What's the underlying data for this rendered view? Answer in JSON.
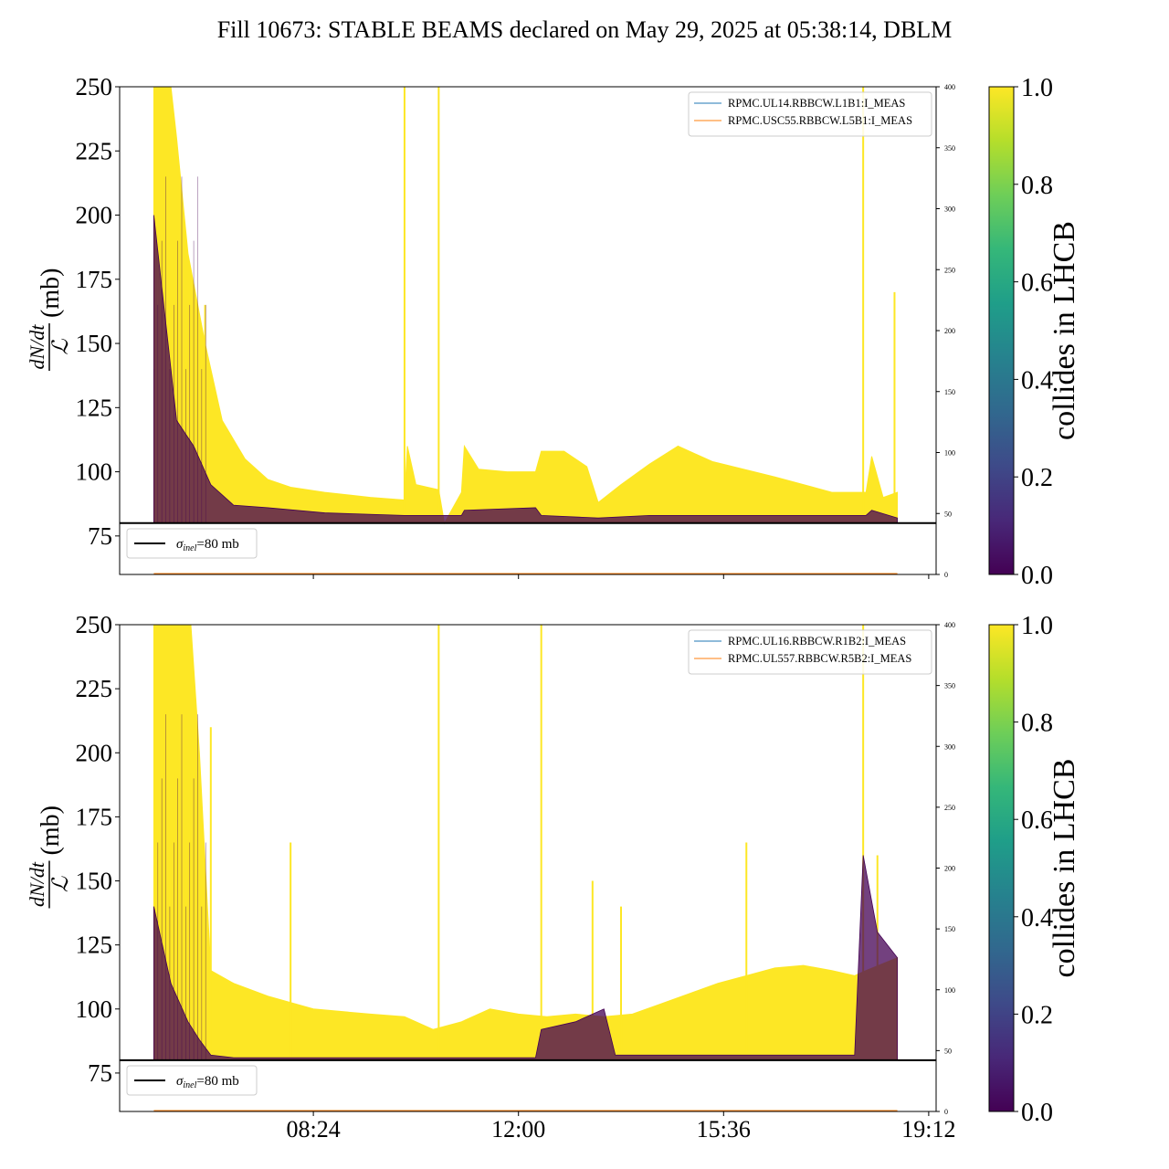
{
  "title": "Fill 10673: STABLE BEAMS declared on May 29, 2025 at 05:38:14, DBLM",
  "colors": {
    "low": "#440154",
    "high": "#fde725",
    "series_blue": "#1f77b4",
    "series_orange": "#ff7f0e"
  },
  "chart_data": [
    {
      "type": "area",
      "ylabel_num": "dN/dt",
      "ylabel_den": "ℒ",
      "ylabel_unit": "(mb)",
      "ylim": [
        60,
        250
      ],
      "yticks": [
        "75",
        "100",
        "125",
        "150",
        "175",
        "200",
        "225",
        "250"
      ],
      "y2lim": [
        0,
        400
      ],
      "y2ticks": [
        "0",
        "50",
        "100",
        "150",
        "200",
        "250",
        "300",
        "350",
        "400"
      ],
      "xticks": [
        "08:24",
        "12:00",
        "15:36",
        "19:12"
      ],
      "xticks_shown": false,
      "hline": {
        "value": 80,
        "label_sym": "σ",
        "label_sub": "inel",
        "label_rest": "=80 mb"
      },
      "legend": [
        "RPMC.UL14.RBBCW.L1B1:I_MEAS",
        "RPMC.USC55.RBBCW.L5B1:I_MEAS"
      ],
      "colorbar": {
        "label": "collides in LHCB",
        "ticks": [
          "0.0",
          "0.2",
          "0.4",
          "0.6",
          "0.8",
          "1.0"
        ]
      },
      "x_hours_range": [
        5.0,
        19.33
      ],
      "yellow_envelope": [
        [
          5.6,
          250
        ],
        [
          5.9,
          250
        ],
        [
          6.0,
          230
        ],
        [
          6.2,
          185
        ],
        [
          6.5,
          150
        ],
        [
          6.8,
          120
        ],
        [
          7.2,
          105
        ],
        [
          7.6,
          97
        ],
        [
          8.0,
          94
        ],
        [
          8.6,
          92
        ],
        [
          9.4,
          90
        ],
        [
          10.0,
          89
        ],
        [
          10.05,
          110
        ],
        [
          10.2,
          95
        ],
        [
          10.6,
          93
        ],
        [
          10.7,
          80
        ],
        [
          11.0,
          92
        ],
        [
          11.05,
          110
        ],
        [
          11.3,
          101
        ],
        [
          11.8,
          100
        ],
        [
          12.3,
          100
        ],
        [
          12.4,
          108
        ],
        [
          12.8,
          108
        ],
        [
          13.2,
          102
        ],
        [
          13.4,
          88
        ],
        [
          13.8,
          95
        ],
        [
          14.3,
          103
        ],
        [
          14.8,
          110
        ],
        [
          15.4,
          104
        ],
        [
          16.5,
          98
        ],
        [
          17.5,
          92
        ],
        [
          18.1,
          92
        ],
        [
          18.2,
          106
        ],
        [
          18.4,
          90
        ],
        [
          18.65,
          92
        ]
      ],
      "purple_envelope": [
        [
          5.6,
          200
        ],
        [
          5.8,
          160
        ],
        [
          6.0,
          120
        ],
        [
          6.3,
          110
        ],
        [
          6.6,
          95
        ],
        [
          7.0,
          87
        ],
        [
          7.6,
          86
        ],
        [
          8.6,
          84
        ],
        [
          10.0,
          83
        ],
        [
          11.0,
          83
        ],
        [
          11.05,
          85
        ],
        [
          12.3,
          86
        ],
        [
          12.4,
          83
        ],
        [
          13.4,
          82
        ],
        [
          14.3,
          83
        ],
        [
          16.5,
          83
        ],
        [
          18.1,
          83
        ],
        [
          18.2,
          85
        ],
        [
          18.65,
          82
        ]
      ],
      "spikes": [
        [
          10.0,
          250
        ],
        [
          10.6,
          250
        ],
        [
          18.05,
          250
        ],
        [
          18.6,
          170
        ],
        [
          6.5,
          165
        ]
      ]
    },
    {
      "type": "area",
      "ylabel_num": "dN/dt",
      "ylabel_den": "ℒ",
      "ylabel_unit": "(mb)",
      "ylim": [
        60,
        250
      ],
      "yticks": [
        "75",
        "100",
        "125",
        "150",
        "175",
        "200",
        "225",
        "250"
      ],
      "y2lim": [
        0,
        400
      ],
      "y2ticks": [
        "0",
        "50",
        "100",
        "150",
        "200",
        "250",
        "300",
        "350",
        "400"
      ],
      "xticks": [
        "08:24",
        "12:00",
        "15:36",
        "19:12"
      ],
      "xticks_shown": true,
      "hline": {
        "value": 80,
        "label_sym": "σ",
        "label_sub": "inel",
        "label_rest": "=80 mb"
      },
      "legend": [
        "RPMC.UL16.RBBCW.R1B2:I_MEAS",
        "RPMC.UL557.RBBCW.R5B2:I_MEAS"
      ],
      "colorbar": {
        "label": "collides in LHCB",
        "ticks": [
          "0.0",
          "0.2",
          "0.4",
          "0.6",
          "0.8",
          "1.0"
        ]
      },
      "x_hours_range": [
        5.0,
        19.33
      ],
      "yellow_envelope": [
        [
          5.6,
          250
        ],
        [
          6.0,
          250
        ],
        [
          6.25,
          250
        ],
        [
          6.4,
          200
        ],
        [
          6.6,
          115
        ],
        [
          7.0,
          110
        ],
        [
          7.6,
          105
        ],
        [
          8.4,
          100
        ],
        [
          9.4,
          98
        ],
        [
          10.0,
          97
        ],
        [
          10.5,
          92
        ],
        [
          11.0,
          95
        ],
        [
          11.5,
          100
        ],
        [
          12.0,
          98
        ],
        [
          12.5,
          97
        ],
        [
          13.0,
          98
        ],
        [
          13.5,
          97
        ],
        [
          14.0,
          98
        ],
        [
          14.5,
          102
        ],
        [
          15.0,
          106
        ],
        [
          15.5,
          110
        ],
        [
          16.0,
          113
        ],
        [
          16.5,
          116
        ],
        [
          17.0,
          117
        ],
        [
          17.5,
          115
        ],
        [
          17.9,
          113
        ],
        [
          18.1,
          115
        ],
        [
          18.65,
          120
        ]
      ],
      "purple_envelope": [
        [
          5.6,
          140
        ],
        [
          5.9,
          110
        ],
        [
          6.2,
          95
        ],
        [
          6.4,
          88
        ],
        [
          6.6,
          82
        ],
        [
          7.0,
          81
        ],
        [
          12.3,
          81
        ],
        [
          12.4,
          92
        ],
        [
          13.0,
          95
        ],
        [
          13.5,
          100
        ],
        [
          13.7,
          82
        ],
        [
          17.9,
          82
        ],
        [
          18.05,
          160
        ],
        [
          18.3,
          130
        ],
        [
          18.65,
          120
        ]
      ],
      "spikes": [
        [
          10.6,
          250
        ],
        [
          12.4,
          250
        ],
        [
          18.05,
          250
        ],
        [
          6.6,
          210
        ],
        [
          8.0,
          165
        ],
        [
          16.0,
          165
        ],
        [
          18.3,
          160
        ],
        [
          13.3,
          150
        ],
        [
          13.8,
          140
        ]
      ]
    }
  ]
}
